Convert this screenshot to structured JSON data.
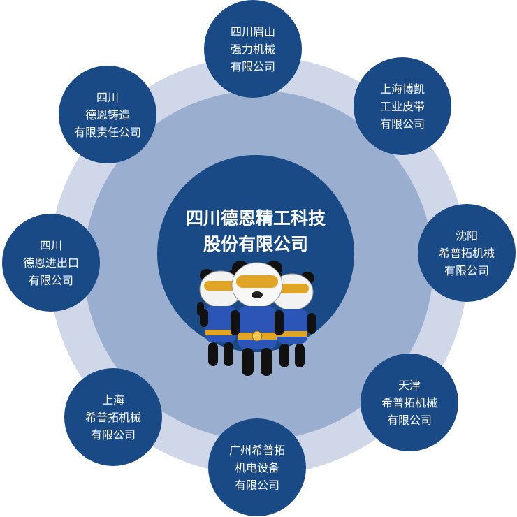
{
  "center": {
    "lines": [
      "四川德恩精工科技",
      "股份有限公司"
    ]
  },
  "satellites": [
    {
      "key": "top",
      "lines": [
        "四川眉山",
        "强力机械",
        "有限公司"
      ]
    },
    {
      "key": "top-right",
      "lines": [
        "上海博凯",
        "工业皮带",
        "有限公司"
      ]
    },
    {
      "key": "right",
      "lines": [
        "沈阳",
        "希普拓机械",
        "有限公司"
      ]
    },
    {
      "key": "bottom-right",
      "lines": [
        "天津",
        "希普拓机械",
        "有限公司"
      ]
    },
    {
      "key": "bottom",
      "lines": [
        "广州希普拓",
        "机电设备",
        "有限公司"
      ]
    },
    {
      "key": "bottom-left",
      "lines": [
        "上海",
        "希普拓机械",
        "有限公司"
      ]
    },
    {
      "key": "left",
      "lines": [
        "四川",
        "德恩进出口",
        "有限公司"
      ]
    },
    {
      "key": "top-left",
      "lines": [
        "四川",
        "德恩铸造",
        "有限责任公司"
      ]
    }
  ],
  "colors": {
    "node": "#1a4a86",
    "ring_inner": "#9aaed0",
    "ring_outer": "#cfd7e8",
    "mascot_gold": "#e0a526",
    "mascot_blue": "#2b56b8"
  },
  "icons": [
    "panda-mascot-group"
  ]
}
